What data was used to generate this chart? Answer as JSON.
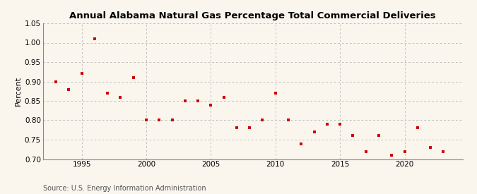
{
  "title": "Annual Alabama Natural Gas Percentage Total Commercial Deliveries",
  "ylabel": "Percent",
  "source": "Source: U.S. Energy Information Administration",
  "background_color": "#faf6ee",
  "plot_background_color": "#faf6ee",
  "marker_color": "#cc0000",
  "marker": "s",
  "marker_size": 3.5,
  "xlim": [
    1992,
    2024.5
  ],
  "ylim": [
    0.7,
    1.05
  ],
  "yticks": [
    0.7,
    0.75,
    0.8,
    0.85,
    0.9,
    0.95,
    1.0,
    1.05
  ],
  "xticks": [
    1995,
    2000,
    2005,
    2010,
    2015,
    2020
  ],
  "years": [
    1993,
    1994,
    1995,
    1996,
    1997,
    1998,
    1999,
    2000,
    2001,
    2002,
    2003,
    2004,
    2005,
    2006,
    2007,
    2008,
    2009,
    2010,
    2011,
    2012,
    2013,
    2014,
    2015,
    2016,
    2017,
    2018,
    2019,
    2020,
    2021,
    2022,
    2023
  ],
  "values": [
    0.9,
    0.88,
    0.92,
    1.01,
    0.87,
    0.86,
    0.91,
    0.8,
    0.8,
    0.8,
    0.85,
    0.85,
    0.84,
    0.86,
    0.78,
    0.78,
    0.8,
    0.87,
    0.8,
    0.74,
    0.77,
    0.79,
    0.79,
    0.76,
    0.72,
    0.76,
    0.71,
    0.72,
    0.78,
    0.73,
    0.72
  ],
  "title_fontsize": 9.5,
  "tick_fontsize": 7.5,
  "ylabel_fontsize": 8,
  "source_fontsize": 7
}
